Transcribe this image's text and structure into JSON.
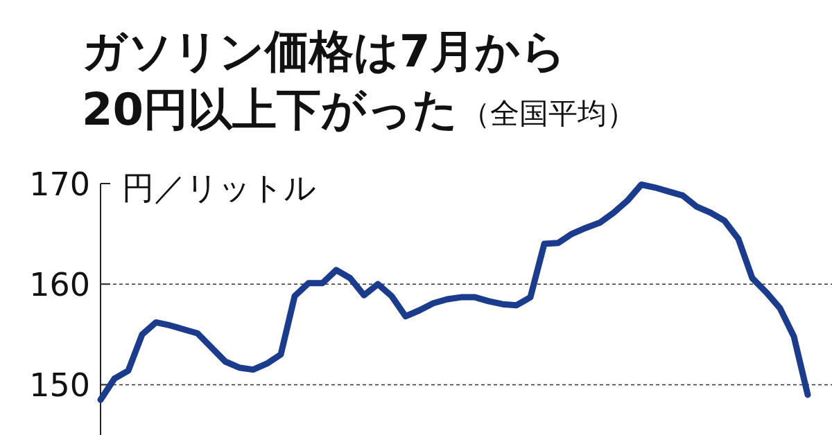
{
  "chart_data": {
    "type": "line",
    "title": "ガソリン価格は7月から\n20円以上下がった",
    "subtitle": "（全国平均）",
    "ylabel": "円／リットル",
    "categories": [
      null,
      null,
      null,
      null,
      null,
      null,
      null,
      null,
      null,
      null,
      null,
      null,
      null,
      null,
      null,
      null,
      null,
      null,
      null,
      null,
      null,
      null,
      null,
      null,
      null,
      null,
      null,
      null,
      null,
      null,
      null,
      null,
      null,
      null,
      null,
      null,
      null,
      null,
      null,
      null,
      null,
      null,
      null,
      null,
      null,
      null,
      null,
      null,
      null,
      null,
      null,
      null
    ],
    "series": [
      {
        "color": "#1b3c8c",
        "values": [
          148.5,
          150.6,
          151.4,
          155.0,
          156.2,
          155.9,
          155.5,
          155.1,
          153.7,
          152.3,
          151.7,
          151.5,
          152.1,
          153.0,
          158.8,
          160.1,
          160.1,
          161.4,
          160.6,
          158.9,
          160.0,
          158.8,
          156.8,
          157.4,
          158.1,
          158.5,
          158.7,
          158.7,
          158.3,
          158.0,
          157.9,
          158.7,
          164.0,
          164.1,
          165.0,
          165.6,
          166.1,
          167.1,
          168.3,
          169.9,
          169.6,
          169.2,
          168.8,
          167.7,
          167.1,
          166.3,
          164.5,
          160.6,
          159.2,
          157.6,
          154.8,
          149.0
        ]
      }
    ],
    "ylim": [
      145,
      170
    ],
    "yticks": [
      150,
      160,
      170
    ],
    "grid": "y",
    "marker": "none",
    "line_style": "solid"
  }
}
